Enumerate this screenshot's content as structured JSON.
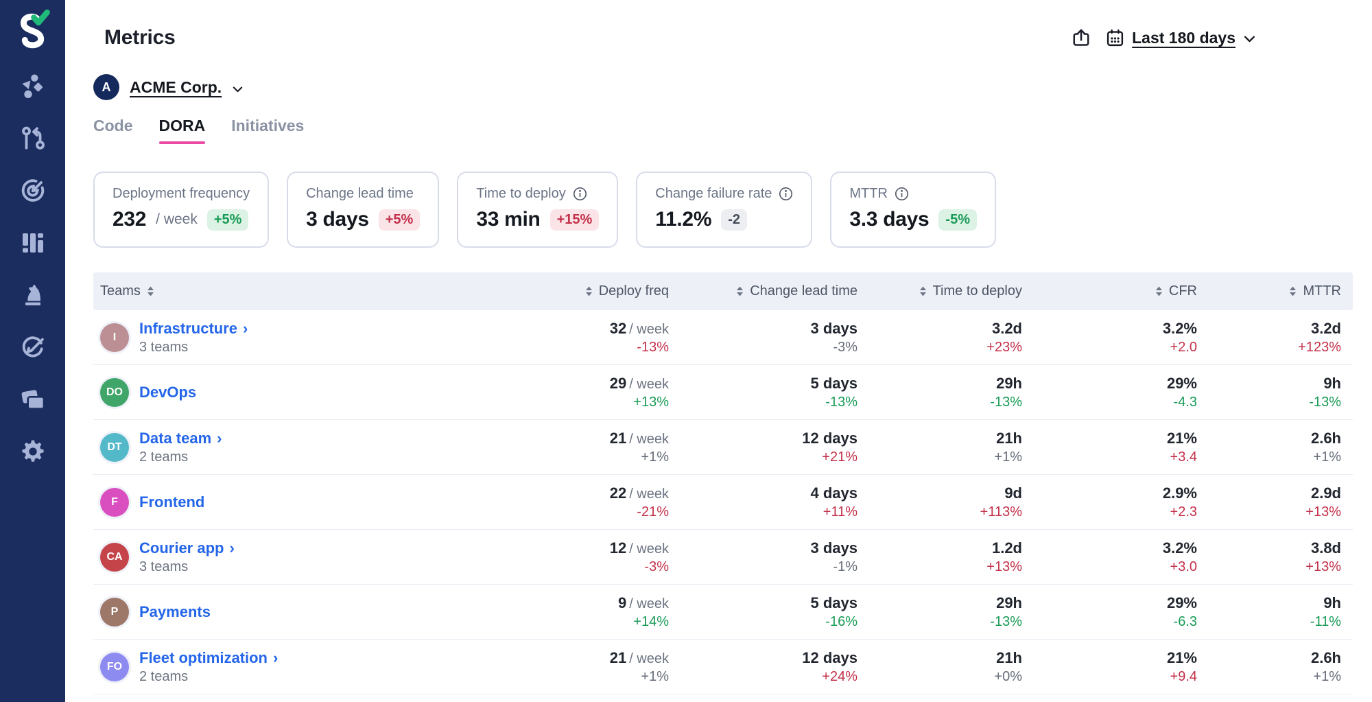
{
  "app": {
    "sidebar_color": "#1b2d5f",
    "accent_pink": "#ea4aa3",
    "link_blue": "#2566e8",
    "positive_green": "#189b56",
    "negative_red": "#c3304a"
  },
  "sidebar": {
    "logo_icon": "swarmia-logo",
    "items": [
      {
        "icon": "shapes"
      },
      {
        "icon": "pull-request"
      },
      {
        "icon": "target-arrow"
      },
      {
        "icon": "columns"
      },
      {
        "icon": "chess-knight"
      },
      {
        "icon": "pencil-circle"
      },
      {
        "icon": "stacked-cards"
      },
      {
        "icon": "gear"
      }
    ]
  },
  "header": {
    "title": "Metrics",
    "share_icon": "share",
    "date_range": {
      "icon": "calendar",
      "label": "Last 180 days"
    }
  },
  "org": {
    "initial": "A",
    "name": "ACME Corp."
  },
  "tabs": [
    {
      "label": "Code",
      "active": false
    },
    {
      "label": "DORA",
      "active": true
    },
    {
      "label": "Initiatives",
      "active": false
    }
  ],
  "cards": [
    {
      "label": "Deployment frequency",
      "has_info": false,
      "value": "232",
      "suffix": "/ week",
      "delta": "+5%",
      "delta_kind": "good"
    },
    {
      "label": "Change lead time",
      "has_info": false,
      "value": "3 days",
      "suffix": "",
      "delta": "+5%",
      "delta_kind": "bad"
    },
    {
      "label": "Time to deploy",
      "has_info": true,
      "value": "33 min",
      "suffix": "",
      "delta": "+15%",
      "delta_kind": "bad"
    },
    {
      "label": "Change failure rate",
      "has_info": true,
      "value": "11.2%",
      "suffix": "",
      "delta": "-2",
      "delta_kind": "neutral"
    },
    {
      "label": "MTTR",
      "has_info": true,
      "value": "3.3 days",
      "suffix": "",
      "delta": "-5%",
      "delta_kind": "good"
    }
  ],
  "table": {
    "expand_glyph": "›",
    "columns": [
      {
        "label": "Teams"
      },
      {
        "label": "Deploy freq"
      },
      {
        "label": "Change lead time"
      },
      {
        "label": "Time to deploy"
      },
      {
        "label": "CFR"
      },
      {
        "label": "MTTR"
      }
    ],
    "rows": [
      {
        "team": "Infrastructure",
        "expandable": true,
        "subtitle": "3 teams",
        "avatar": {
          "initials": "I",
          "color": "#bb8f93"
        },
        "cells": [
          {
            "value": "32",
            "suffix": "/ week",
            "delta": "-13%",
            "trend": "bad"
          },
          {
            "value": "3 days",
            "suffix": "",
            "delta": "-3%",
            "trend": "neutral"
          },
          {
            "value": "3.2d",
            "suffix": "",
            "delta": "+23%",
            "trend": "bad"
          },
          {
            "value": "3.2%",
            "suffix": "",
            "delta": "+2.0",
            "trend": "bad"
          },
          {
            "value": "3.2d",
            "suffix": "",
            "delta": "+123%",
            "trend": "bad"
          }
        ]
      },
      {
        "team": "DevOps",
        "expandable": false,
        "subtitle": "",
        "avatar": {
          "initials": "DO",
          "color": "#3fa568"
        },
        "cells": [
          {
            "value": "29",
            "suffix": "/ week",
            "delta": "+13%",
            "trend": "good"
          },
          {
            "value": "5 days",
            "suffix": "",
            "delta": "-13%",
            "trend": "good"
          },
          {
            "value": "29h",
            "suffix": "",
            "delta": "-13%",
            "trend": "good"
          },
          {
            "value": "29%",
            "suffix": "",
            "delta": "-4.3",
            "trend": "good"
          },
          {
            "value": "9h",
            "suffix": "",
            "delta": "-13%",
            "trend": "good"
          }
        ]
      },
      {
        "team": "Data team",
        "expandable": true,
        "subtitle": "2 teams",
        "avatar": {
          "initials": "DT",
          "color": "#53b8c8"
        },
        "cells": [
          {
            "value": "21",
            "suffix": "/ week",
            "delta": "+1%",
            "trend": "neutral"
          },
          {
            "value": "12 days",
            "suffix": "",
            "delta": "+21%",
            "trend": "bad"
          },
          {
            "value": "21h",
            "suffix": "",
            "delta": "+1%",
            "trend": "neutral"
          },
          {
            "value": "21%",
            "suffix": "",
            "delta": "+3.4",
            "trend": "bad"
          },
          {
            "value": "2.6h",
            "suffix": "",
            "delta": "+1%",
            "trend": "neutral"
          }
        ]
      },
      {
        "team": "Frontend",
        "expandable": false,
        "subtitle": "",
        "avatar": {
          "initials": "F",
          "color": "#d94fc0"
        },
        "cells": [
          {
            "value": "22",
            "suffix": "/ week",
            "delta": "-21%",
            "trend": "bad"
          },
          {
            "value": "4 days",
            "suffix": "",
            "delta": "+11%",
            "trend": "bad"
          },
          {
            "value": "9d",
            "suffix": "",
            "delta": "+113%",
            "trend": "bad"
          },
          {
            "value": "2.9%",
            "suffix": "",
            "delta": "+2.3",
            "trend": "bad"
          },
          {
            "value": "2.9d",
            "suffix": "",
            "delta": "+13%",
            "trend": "bad"
          }
        ]
      },
      {
        "team": "Courier app",
        "expandable": true,
        "subtitle": "3 teams",
        "avatar": {
          "initials": "CA",
          "color": "#c4444a"
        },
        "cells": [
          {
            "value": "12",
            "suffix": "/ week",
            "delta": "-3%",
            "trend": "bad"
          },
          {
            "value": "3 days",
            "suffix": "",
            "delta": "-1%",
            "trend": "neutral"
          },
          {
            "value": "1.2d",
            "suffix": "",
            "delta": "+13%",
            "trend": "bad"
          },
          {
            "value": "3.2%",
            "suffix": "",
            "delta": "+3.0",
            "trend": "bad"
          },
          {
            "value": "3.8d",
            "suffix": "",
            "delta": "+13%",
            "trend": "bad"
          }
        ]
      },
      {
        "team": "Payments",
        "expandable": false,
        "subtitle": "",
        "avatar": {
          "initials": "P",
          "color": "#9d7767"
        },
        "cells": [
          {
            "value": "9",
            "suffix": "/ week",
            "delta": "+14%",
            "trend": "good"
          },
          {
            "value": "5 days",
            "suffix": "",
            "delta": "-16%",
            "trend": "good"
          },
          {
            "value": "29h",
            "suffix": "",
            "delta": "-13%",
            "trend": "good"
          },
          {
            "value": "29%",
            "suffix": "",
            "delta": "-6.3",
            "trend": "good"
          },
          {
            "value": "9h",
            "suffix": "",
            "delta": "-11%",
            "trend": "good"
          }
        ]
      },
      {
        "team": "Fleet optimization",
        "expandable": true,
        "subtitle": "2 teams",
        "avatar": {
          "initials": "FO",
          "color": "#8e8bf0"
        },
        "cells": [
          {
            "value": "21",
            "suffix": "/ week",
            "delta": "+1%",
            "trend": "neutral"
          },
          {
            "value": "12 days",
            "suffix": "",
            "delta": "+24%",
            "trend": "bad"
          },
          {
            "value": "21h",
            "suffix": "",
            "delta": "+0%",
            "trend": "neutral"
          },
          {
            "value": "21%",
            "suffix": "",
            "delta": "+9.4",
            "trend": "bad"
          },
          {
            "value": "2.6h",
            "suffix": "",
            "delta": "+1%",
            "trend": "neutral"
          }
        ]
      }
    ]
  }
}
